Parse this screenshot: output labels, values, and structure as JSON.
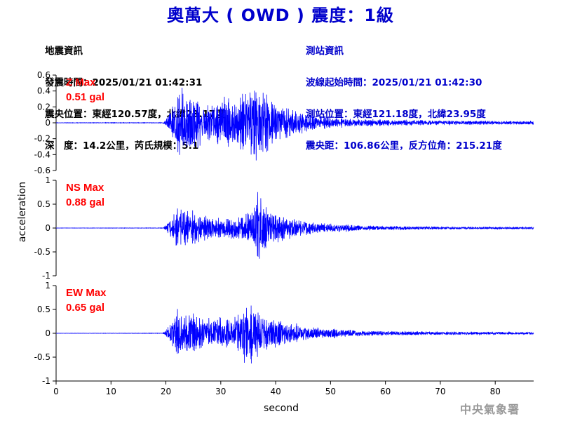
{
  "header": {
    "title": "奧萬大 ( OWD ) 震度：1級"
  },
  "event_info": {
    "heading": "地震資訊",
    "origin_time": "發震時間：2025/01/21 01:42:31",
    "epicenter": "震央位置：東經120.57度，北緯23.17度",
    "depth_magnitude": "深　度：14.2公里，芮氏規模：5.1"
  },
  "station_info": {
    "heading": "測站資訊",
    "wave_start": "波線起始時間：2025/01/21 01:42:30",
    "station_location": "測站位置：東經121.18度，北緯23.95度",
    "distance_azimuth": "震央距：106.86公里，反方位角：215.21度"
  },
  "agency": "中央氣象署",
  "colors": {
    "title": "#0000cc",
    "station_info": "#0000cc",
    "trace": "#0000ff",
    "max_label": "#ff0000",
    "agency": "#999999"
  },
  "chart_data": {
    "type": "line",
    "xlabel": "second",
    "ylabel": "acceleration",
    "xlim": [
      0,
      87
    ],
    "x_ticks": [
      "0",
      "10",
      "20",
      "30",
      "40",
      "50",
      "60",
      "70",
      "80"
    ],
    "grid": false,
    "panels": [
      {
        "component": "Z",
        "max_label": "Z Max",
        "max_value": "0.51 gal",
        "ylim": [
          -0.6,
          0.6
        ],
        "y_ticks": [
          "0.6",
          "0.4",
          "0.2",
          "0",
          "-0.2",
          "-0.4",
          "-0.6"
        ],
        "envelope": [
          [
            0,
            0.002
          ],
          [
            17,
            0.003
          ],
          [
            19.5,
            0.004
          ],
          [
            20.3,
            0.06
          ],
          [
            21,
            0.15
          ],
          [
            22,
            0.27
          ],
          [
            22.7,
            0.38
          ],
          [
            23.5,
            0.3
          ],
          [
            25,
            0.3
          ],
          [
            27,
            0.18
          ],
          [
            30,
            0.22
          ],
          [
            33,
            0.25
          ],
          [
            35,
            0.36
          ],
          [
            36,
            0.42
          ],
          [
            37,
            0.35
          ],
          [
            39,
            0.27
          ],
          [
            41,
            0.22
          ],
          [
            44,
            0.12
          ],
          [
            47,
            0.08
          ],
          [
            50,
            0.06
          ],
          [
            55,
            0.04
          ],
          [
            60,
            0.035
          ],
          [
            70,
            0.025
          ],
          [
            80,
            0.02
          ],
          [
            87,
            0.02
          ]
        ]
      },
      {
        "component": "NS",
        "max_label": "NS Max",
        "max_value": "0.88 gal",
        "ylim": [
          -1,
          1
        ],
        "y_ticks": [
          "1",
          "0.5",
          "0",
          "-0.5",
          "-1"
        ],
        "envelope": [
          [
            0,
            0.002
          ],
          [
            19.5,
            0.004
          ],
          [
            20.2,
            0.08
          ],
          [
            21,
            0.2
          ],
          [
            22,
            0.38
          ],
          [
            23,
            0.35
          ],
          [
            24,
            0.32
          ],
          [
            26,
            0.26
          ],
          [
            28,
            0.2
          ],
          [
            30,
            0.18
          ],
          [
            33,
            0.2
          ],
          [
            35,
            0.25
          ],
          [
            36.3,
            0.4
          ],
          [
            37,
            0.78
          ],
          [
            37.6,
            0.45
          ],
          [
            39,
            0.28
          ],
          [
            41,
            0.24
          ],
          [
            44,
            0.16
          ],
          [
            47,
            0.1
          ],
          [
            50,
            0.08
          ],
          [
            55,
            0.05
          ],
          [
            60,
            0.035
          ],
          [
            70,
            0.025
          ],
          [
            80,
            0.02
          ],
          [
            87,
            0.02
          ]
        ]
      },
      {
        "component": "EW",
        "max_label": "EW Max",
        "max_value": "0.65 gal",
        "ylim": [
          -1,
          1
        ],
        "y_ticks": [
          "1",
          "0.5",
          "0",
          "-0.5",
          "-1"
        ],
        "envelope": [
          [
            0,
            0.002
          ],
          [
            19.5,
            0.004
          ],
          [
            20.2,
            0.08
          ],
          [
            21,
            0.2
          ],
          [
            22,
            0.4
          ],
          [
            23,
            0.36
          ],
          [
            24,
            0.38
          ],
          [
            26,
            0.28
          ],
          [
            28,
            0.26
          ],
          [
            30,
            0.28
          ],
          [
            32,
            0.26
          ],
          [
            34,
            0.4
          ],
          [
            35.5,
            0.5
          ],
          [
            37,
            0.4
          ],
          [
            38,
            0.3
          ],
          [
            40,
            0.25
          ],
          [
            42,
            0.18
          ],
          [
            45,
            0.12
          ],
          [
            48,
            0.1
          ],
          [
            52,
            0.07
          ],
          [
            56,
            0.05
          ],
          [
            60,
            0.04
          ],
          [
            70,
            0.03
          ],
          [
            80,
            0.025
          ],
          [
            87,
            0.02
          ]
        ]
      }
    ]
  }
}
